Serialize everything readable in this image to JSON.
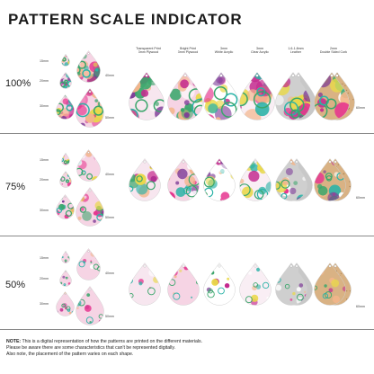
{
  "title": "PATTERN SCALE INDICATOR",
  "columns": [
    "Transparent Print\n3mm Plywood",
    "Bright Print\n3mm Plywood",
    "3mm\nWhite Acrylic",
    "3mm\nClear Acrylic",
    "1.6-1.8mm\nLeather",
    "2mm\nDouble Sided Cork"
  ],
  "sections": [
    {
      "scale": "100%",
      "sizes": [
        "15mm",
        "20mm",
        "30mm"
      ],
      "size_40": "40mm",
      "size_50": "50mm",
      "size_60": "60mm"
    },
    {
      "scale": "75%",
      "sizes": [
        "15mm",
        "20mm",
        "30mm"
      ],
      "size_40": "40mm",
      "size_50": "50mm",
      "size_60": "60mm"
    },
    {
      "scale": "50%",
      "sizes": [
        "15mm",
        "20mm",
        "30mm"
      ],
      "size_40": "40mm",
      "size_50": "50mm",
      "size_60": "60mm"
    }
  ],
  "note": {
    "label": "NOTE:",
    "line1": " This is a digital representation of how the patterns are printed on the different materials.",
    "line2": "Please be aware there are some characteristics that can't be represented digitally.",
    "line3": "Also note, the placement of the pattern varies on each shape."
  },
  "colors": {
    "pink": "#e6358f",
    "magenta": "#c42a8e",
    "yellow": "#e9d84a",
    "green": "#3aa66b",
    "teal": "#2bb3a7",
    "purple": "#7d3a97",
    "peach": "#f3b58a",
    "cork": "#d9b284",
    "leather": "#cfcfcf",
    "plywood": "#e8c99a"
  }
}
